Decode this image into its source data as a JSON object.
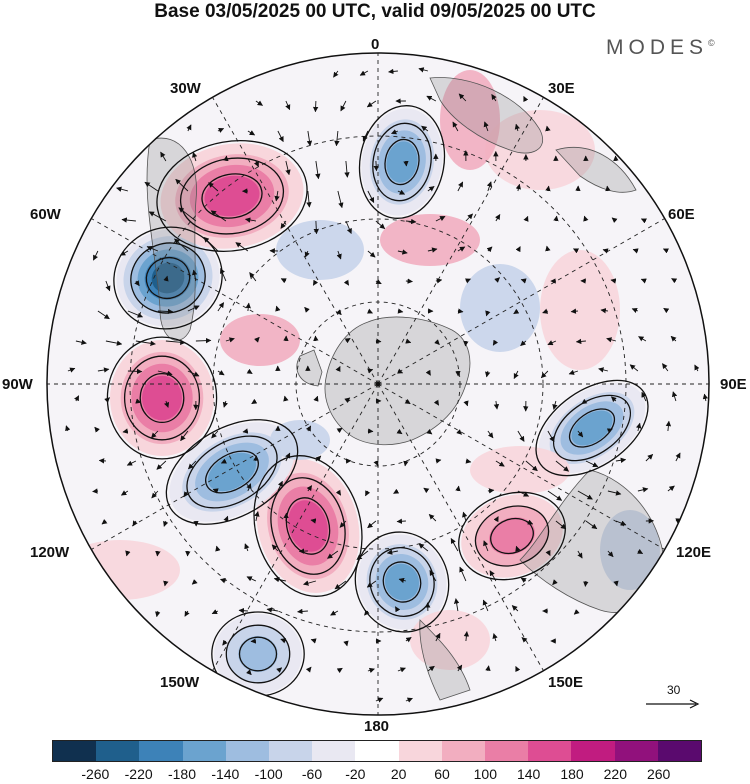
{
  "title": "Base 03/05/2025 00 UTC, valid 09/05/2025 00 UTC",
  "brand": "MODES",
  "brand_mark": "©",
  "longitude_labels": {
    "lon_0": "0",
    "lon_30e": "30E",
    "lon_60e": "60E",
    "lon_90e": "90E",
    "lon_120e": "120E",
    "lon_150e": "150E",
    "lon_180": "180",
    "lon_150w": "150W",
    "lon_120w": "120W",
    "lon_90w": "90W",
    "lon_60w": "60W",
    "lon_30w": "30W"
  },
  "reference_vector": {
    "value": "30"
  },
  "colorbar": {
    "colors": [
      "#10304f",
      "#1f5f8c",
      "#3d82b8",
      "#6ba3cf",
      "#9ebde0",
      "#c8d4ea",
      "#e9e8f2",
      "#ffffff",
      "#f8d6dc",
      "#f2aec0",
      "#ea7ea6",
      "#de4d93",
      "#c11c80",
      "#91117c",
      "#5a0a6e"
    ],
    "tick_labels": [
      "-260",
      "-220",
      "-180",
      "-140",
      "-100",
      "-60",
      "-20",
      "20",
      "60",
      "100",
      "140",
      "180",
      "220",
      "260"
    ]
  },
  "anomaly_centers": [
    {
      "kind": "negative",
      "level": -260,
      "where": "off Chile, 60W"
    },
    {
      "kind": "positive",
      "level": 180,
      "where": "South Atlantic, 40W"
    },
    {
      "kind": "negative",
      "level": -180,
      "where": "South Atlantic, 0"
    },
    {
      "kind": "positive",
      "level": 180,
      "where": "southeast Pacific, 90W"
    },
    {
      "kind": "positive",
      "level": 180,
      "where": "Pacific, 150W"
    },
    {
      "kind": "negative",
      "level": -180,
      "where": "Pacific, 110W"
    },
    {
      "kind": "negative",
      "level": -180,
      "where": "Indian Ocean, 90E"
    },
    {
      "kind": "positive",
      "level": 140,
      "where": "off Australia, 120E"
    },
    {
      "kind": "negative",
      "level": -180,
      "where": "Ross Sea, 170E"
    },
    {
      "kind": "negative",
      "level": -140,
      "where": "south Pacific, 160W"
    }
  ]
}
